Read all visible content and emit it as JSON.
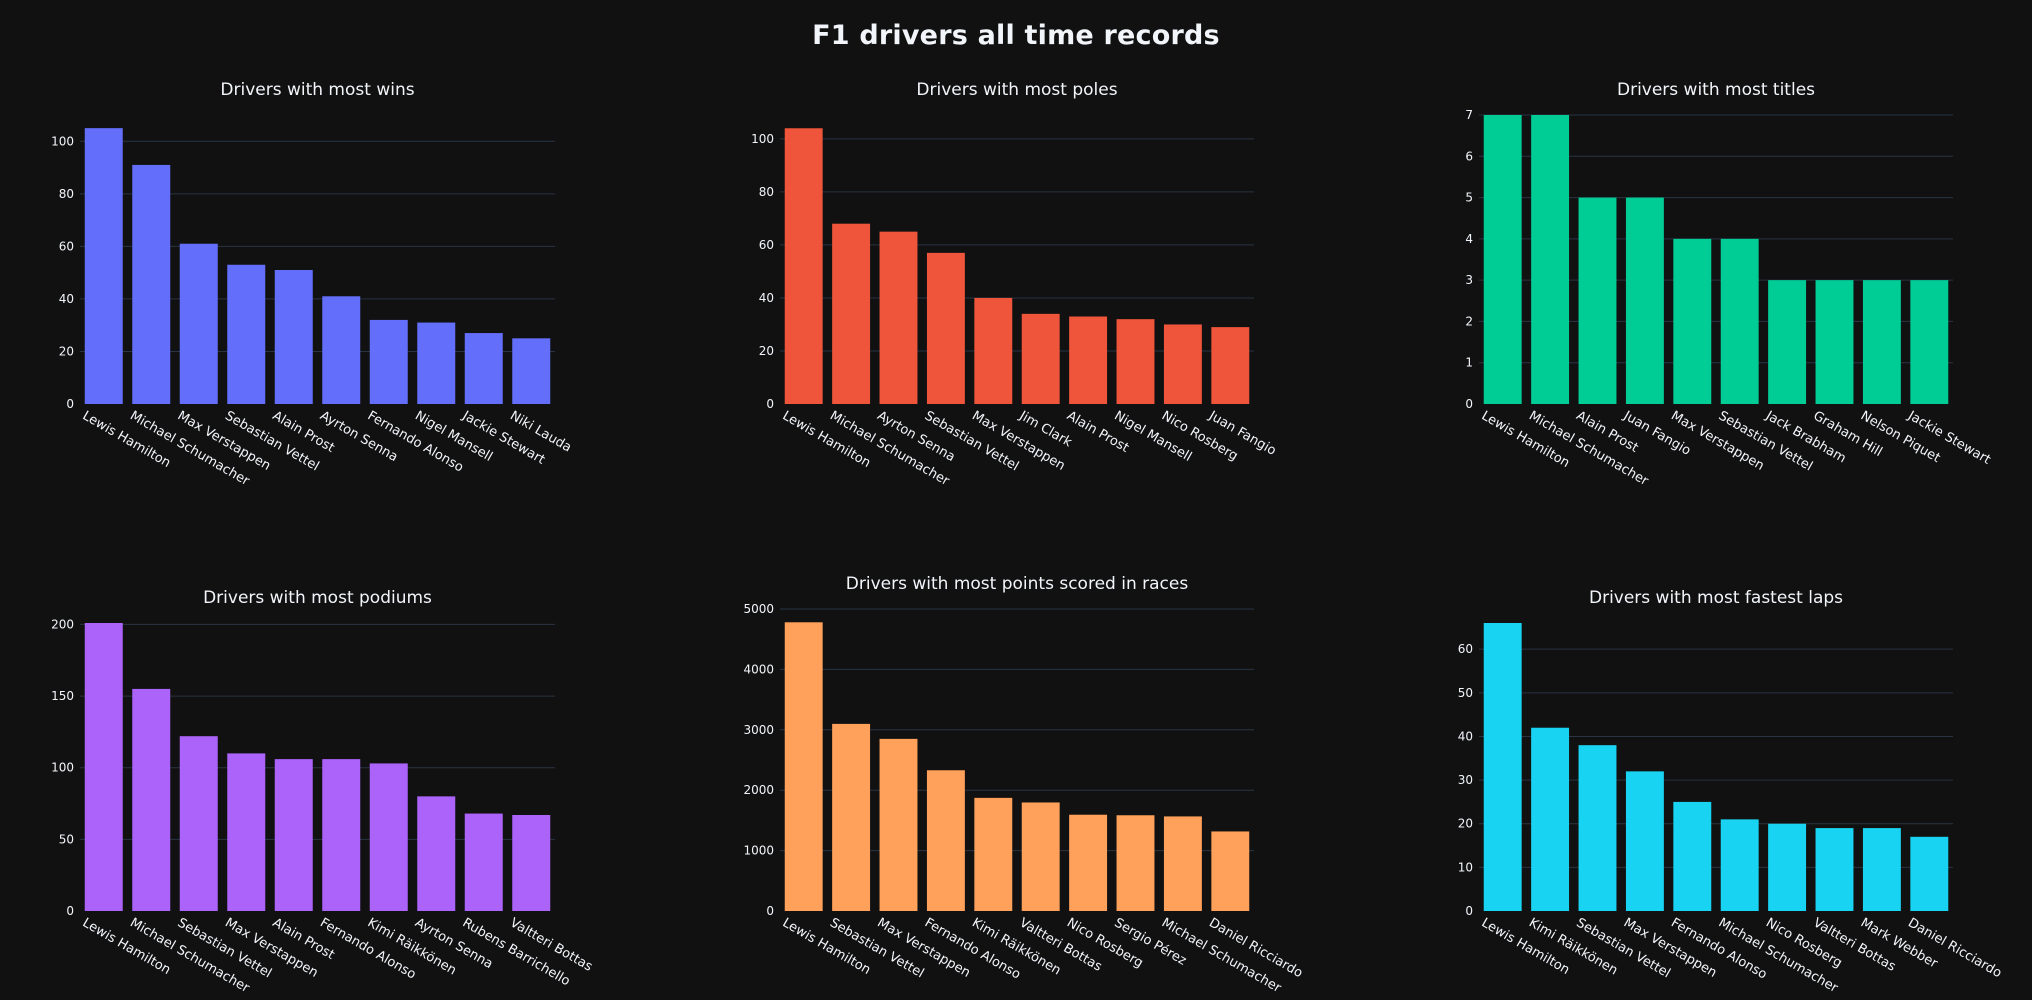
{
  "title": "F1 drivers all time records",
  "chart_data": [
    {
      "type": "bar",
      "title": "Drivers with most wins",
      "color": "#636efa",
      "categories": [
        "Lewis Hamilton",
        "Michael Schumacher",
        "Max Verstappen",
        "Sebastian Vettel",
        "Alain Prost",
        "Ayrton Senna",
        "Fernando Alonso",
        "Nigel Mansell",
        "Jackie Stewart",
        "Niki Lauda"
      ],
      "values": [
        105,
        91,
        61,
        53,
        51,
        41,
        32,
        31,
        27,
        25
      ],
      "ylim": [
        0,
        110
      ],
      "yticks": [
        0,
        20,
        40,
        60,
        80,
        100
      ]
    },
    {
      "type": "bar",
      "title": "Drivers with most poles",
      "color": "#ef553b",
      "categories": [
        "Lewis Hamilton",
        "Michael Schumacher",
        "Ayrton Senna",
        "Sebastian Vettel",
        "Max Verstappen",
        "Jim Clark",
        "Alain Prost",
        "Nigel Mansell",
        "Nico Rosberg",
        "Juan Fangio"
      ],
      "values": [
        104,
        68,
        65,
        57,
        40,
        34,
        33,
        32,
        30,
        29
      ],
      "ylim": [
        0,
        109
      ],
      "yticks": [
        0,
        20,
        40,
        60,
        80,
        100
      ]
    },
    {
      "type": "bar",
      "title": "Drivers with most titles",
      "color": "#00cc96",
      "categories": [
        "Lewis Hamilton",
        "Michael Schumacher",
        "Alain Prost",
        "Juan Fangio",
        "Max Verstappen",
        "Sebastian Vettel",
        "Jack Brabham",
        "Graham Hill",
        "Nelson Piquet",
        "Jackie Stewart"
      ],
      "values": [
        7,
        7,
        5,
        5,
        4,
        4,
        3,
        3,
        3,
        3
      ],
      "ylim": [
        0,
        7
      ],
      "yticks": [
        0,
        1,
        2,
        3,
        4,
        5,
        6,
        7
      ]
    },
    {
      "type": "bar",
      "title": "Drivers with most podiums",
      "color": "#ab63fa",
      "categories": [
        "Lewis Hamilton",
        "Michael Schumacher",
        "Sebastian Vettel",
        "Max Verstappen",
        "Alain Prost",
        "Fernando Alonso",
        "Kimi Räikkönen",
        "Ayrton Senna",
        "Rubens Barrichello",
        "Valtteri Bottas"
      ],
      "values": [
        201,
        155,
        122,
        110,
        106,
        106,
        103,
        80,
        68,
        67
      ],
      "ylim": [
        0,
        201
      ],
      "yticks": [
        0,
        50,
        100,
        150,
        200
      ]
    },
    {
      "type": "bar",
      "title": "Drivers with most points scored in races",
      "color": "#ffa15a",
      "categories": [
        "Lewis Hamilton",
        "Sebastian Vettel",
        "Max Verstappen",
        "Fernando Alonso",
        "Kimi Räikkönen",
        "Valtteri Bottas",
        "Nico Rosberg",
        "Sergio Pérez",
        "Michael Schumacher",
        "Daniel Ricciardo"
      ],
      "values": [
        4780,
        3098,
        2850,
        2330,
        1873,
        1797,
        1594,
        1585,
        1566,
        1317
      ],
      "ylim": [
        0,
        5000
      ],
      "yticks": [
        0,
        1000,
        2000,
        3000,
        4000,
        5000
      ]
    },
    {
      "type": "bar",
      "title": "Drivers with most fastest laps",
      "color": "#19d3f3",
      "categories": [
        "Lewis Hamilton",
        "Kimi Räikkönen",
        "Sebastian Vettel",
        "Max Verstappen",
        "Fernando Alonso",
        "Michael Schumacher",
        "Nico Rosberg",
        "Valtteri Bottas",
        "Mark Webber",
        "Daniel Ricciardo"
      ],
      "values": [
        66,
        42,
        38,
        32,
        25,
        21,
        20,
        19,
        19,
        17
      ],
      "ylim": [
        0,
        66
      ],
      "yticks": [
        0,
        10,
        20,
        30,
        40,
        50,
        60
      ]
    }
  ]
}
